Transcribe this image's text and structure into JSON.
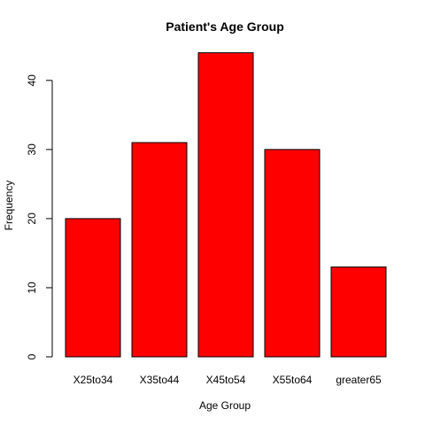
{
  "chart_data": {
    "type": "bar",
    "title": "Patient's Age Group",
    "xlabel": "Age Group",
    "ylabel": "Frequency",
    "categories": [
      "X25to34",
      "X35to44",
      "X45to54",
      "X55to64",
      "greater65"
    ],
    "values": [
      20,
      31,
      44,
      30,
      13
    ],
    "ylim": [
      0,
      44
    ],
    "yticks": [
      0,
      10,
      20,
      30,
      40
    ],
    "bar_color": "#ff0000",
    "bar_border": "#000000",
    "grid": false,
    "legend": "none"
  }
}
